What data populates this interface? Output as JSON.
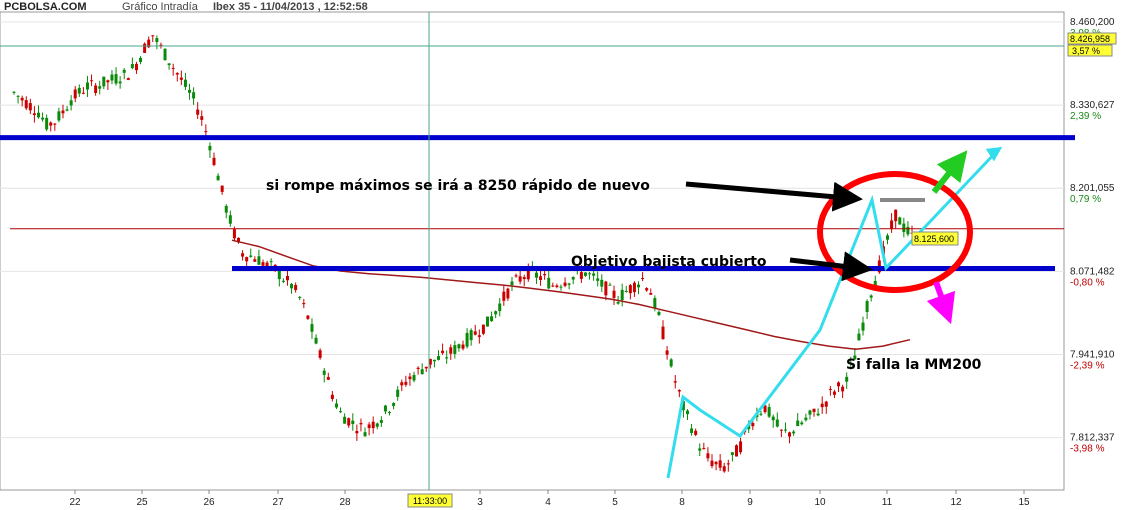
{
  "header": {
    "brand": "PCBOLSA.COM",
    "chart_kind": "Gráfico Intradía",
    "instrument": "Ibex 35 - 11/04/2013 , 12:52:58"
  },
  "chart_data": {
    "type": "candlestick",
    "x_ticks": [
      "22",
      "25",
      "26",
      "27",
      "28",
      "3",
      "4",
      "5",
      "8",
      "9",
      "10",
      "11",
      "12",
      "15"
    ],
    "crosshair_time": "11:33:00",
    "ylim": [
      7740,
      8460.2
    ],
    "price_levels": [
      {
        "price": "8.460,200",
        "pct": "3,98 %",
        "value": 8460.2
      },
      {
        "price": "8.330,627",
        "pct": "2,39 %",
        "value": 8330.627
      },
      {
        "price": "8.201,055",
        "pct": "0,79 %",
        "value": 8201.055
      },
      {
        "price": "8.071,482",
        "pct": "-0,80 %",
        "value": 8071.482
      },
      {
        "price": "7.941,910",
        "pct": "-2,39 %",
        "value": 7941.91
      },
      {
        "price": "7.812,337",
        "pct": "-3,98 %",
        "value": 7812.337
      }
    ],
    "tagged_levels": [
      {
        "price": "8.426,958",
        "pct": "3,57 %",
        "value": 8426.958
      },
      {
        "price": "8.125,600",
        "value": 8125.6
      }
    ],
    "horizontal_lines": [
      {
        "value": 8280,
        "color": "#0000cc"
      },
      {
        "value": 8076,
        "color": "#0000cc"
      },
      {
        "value": 8138,
        "color": "#b00000"
      }
    ],
    "close_series": [
      8350,
      8340,
      8330,
      8320,
      8300,
      8305,
      8320,
      8340,
      8350,
      8360,
      8360,
      8365,
      8370,
      8375,
      8380,
      8395,
      8420,
      8440,
      8420,
      8400,
      8380,
      8360,
      8340,
      8310,
      8270,
      8220,
      8170,
      8130,
      8100,
      8095,
      8090,
      8080,
      8075,
      8060,
      8050,
      8030,
      8000,
      7960,
      7920,
      7880,
      7850,
      7840,
      7830,
      7825,
      7835,
      7845,
      7860,
      7880,
      7900,
      7910,
      7920,
      7930,
      7935,
      7940,
      7950,
      7960,
      7970,
      7980,
      7990,
      8010,
      8030,
      8050,
      8060,
      8070,
      8065,
      8060,
      8050,
      8055,
      8060,
      8065,
      8070,
      8060,
      8050,
      8040,
      8030,
      8040,
      8050,
      8060,
      8040,
      8000,
      7950,
      7900,
      7860,
      7830,
      7800,
      7780,
      7770,
      7765,
      7780,
      7800,
      7830,
      7850,
      7860,
      7840,
      7820,
      7820,
      7830,
      7840,
      7850,
      7860,
      7880,
      7890,
      7900,
      7940,
      7990,
      8040,
      8080,
      8120,
      8160,
      8140,
      8125
    ],
    "ma200_series": [
      8120,
      8110,
      8095,
      8080,
      8072,
      8068,
      8065,
      8062,
      8058,
      8054,
      8050,
      8045,
      8040,
      8034,
      8028,
      8020,
      8010,
      8000,
      7990,
      7980,
      7970,
      7962,
      7955,
      7950,
      7955,
      7965
    ],
    "annotations": {
      "top_text": "si rompe máximos se irá a 8250 rápido de nuevo",
      "mid_text": "Objetivo bajista cubierto",
      "low_text": "Si falla la MM200"
    },
    "colors": {
      "up": "#0a8a0a",
      "down": "#cc0000",
      "support": "#0000cc",
      "ma": "#a01818",
      "trend": "#33ddee",
      "circle": "#ff0000"
    }
  }
}
